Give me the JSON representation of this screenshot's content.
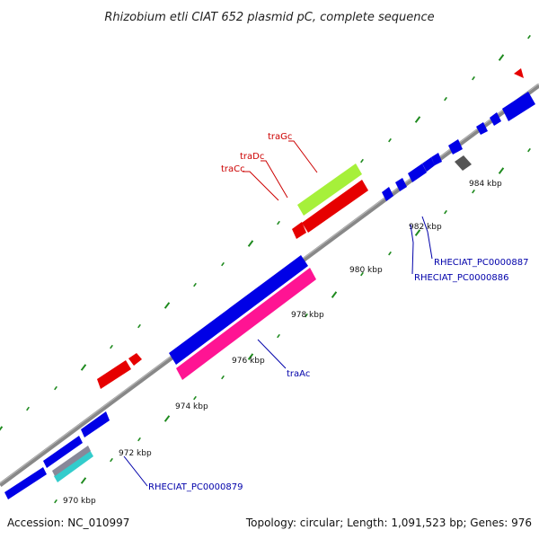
{
  "title": "Rhizobium etli CIAT 652 plasmid pC, complete sequence",
  "footer": {
    "accession": "Accession: NC_010997",
    "summary": "Topology: circular; Length: 1,091,523 bp; Genes: 976"
  },
  "ticks": [
    {
      "label": "970 kbp"
    },
    {
      "label": "972 kbp"
    },
    {
      "label": "974 kbp"
    },
    {
      "label": "976 kbp"
    },
    {
      "label": "978 kbp"
    },
    {
      "label": "980 kbp"
    },
    {
      "label": "982 kbp"
    },
    {
      "label": "984 kbp"
    }
  ],
  "gene_labels": [
    {
      "text": "traGc",
      "color": "#cc0000"
    },
    {
      "text": "traDc",
      "color": "#cc0000"
    },
    {
      "text": "traCc",
      "color": "#cc0000"
    },
    {
      "text": "traAc",
      "color": "#0000aa"
    },
    {
      "text": "RHECIAT_PC0000887",
      "color": "#0000aa"
    },
    {
      "text": "RHECIAT_PC0000886",
      "color": "#0000aa"
    },
    {
      "text": "RHECIAT_PC0000879",
      "color": "#0000aa"
    }
  ],
  "colors": {
    "backbone": "#888888",
    "tick_dots": "#1e8a1e",
    "forward_blue": "#0000e6",
    "red": "#e60000",
    "pink": "#ff1493",
    "lime": "#a6f03a",
    "gray": "#555555",
    "cyan": "#33cccc"
  }
}
